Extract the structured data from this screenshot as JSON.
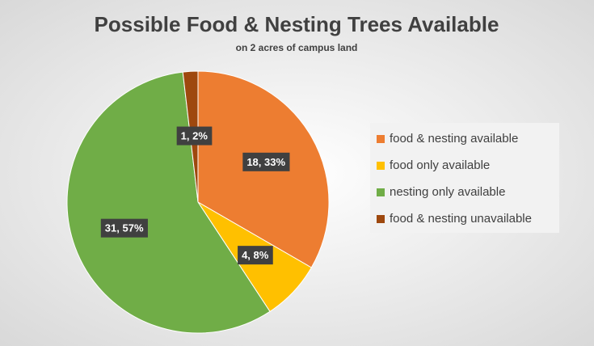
{
  "chart_data": {
    "type": "pie",
    "title": "Possible Food & Nesting Trees Available",
    "subtitle": "on 2 acres of campus land",
    "categories": [
      "food & nesting available",
      "food only available",
      "nesting only available",
      "food & nesting unavailable"
    ],
    "values": [
      18,
      4,
      31,
      1
    ],
    "value_labels": [
      "18, 33%",
      "4, 8%",
      "31, 57%",
      "1, 2%"
    ],
    "colors": [
      "#ED7D31",
      "#FFC000",
      "#70AD47",
      "#9E480E"
    ],
    "legend": "right"
  }
}
